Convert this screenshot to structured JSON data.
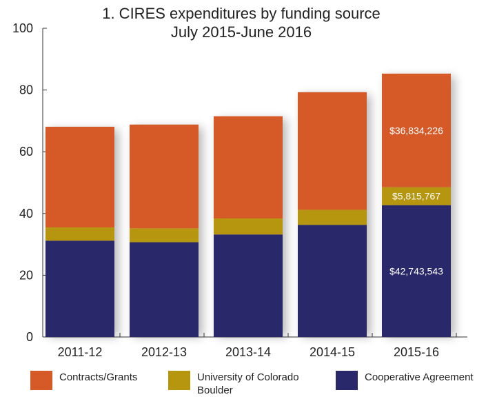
{
  "chart_data": {
    "type": "bar",
    "stacked": true,
    "title": [
      "1. CIRES expenditures by funding source",
      "July 2015-June 2016"
    ],
    "categories": [
      "2011-12",
      "2012-13",
      "2013-14",
      "2014-15",
      "2015-16"
    ],
    "series": [
      {
        "name": "Cooperative Agreement",
        "color": "#28286b",
        "values": [
          31.2,
          30.7,
          33.2,
          36.3,
          42.7
        ],
        "labels": [
          "",
          "",
          "",
          "",
          "$42,743,543"
        ]
      },
      {
        "name": "University of Colorado Boulder",
        "color": "#b6960f",
        "values": [
          4.3,
          4.5,
          5.2,
          4.9,
          5.8
        ],
        "labels": [
          "",
          "",
          "",
          "",
          "$5,815,767"
        ]
      },
      {
        "name": "Contracts/Grants",
        "color": "#d65a28",
        "values": [
          32.6,
          33.6,
          33.1,
          38.1,
          36.8
        ],
        "labels": [
          "",
          "",
          "",
          "",
          "$36,834,226"
        ]
      }
    ],
    "ylim": [
      0,
      100
    ],
    "yticks": [
      0,
      20,
      40,
      60,
      80,
      100
    ],
    "grid": false,
    "legend_position": "bottom"
  },
  "legend": {
    "items": [
      {
        "label": "Contracts/Grants",
        "color": "#d65a28"
      },
      {
        "label": "University of Colorado Boulder",
        "color": "#b6960f"
      },
      {
        "label": "Cooperative Agreement",
        "color": "#28286b"
      }
    ]
  }
}
